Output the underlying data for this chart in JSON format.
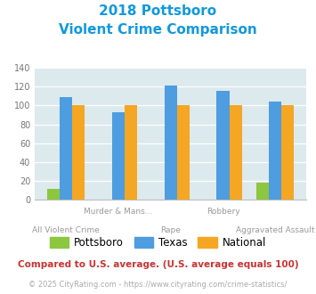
{
  "title_line1": "2018 Pottsboro",
  "title_line2": "Violent Crime Comparison",
  "categories": [
    "All Violent Crime",
    "Murder & Mans...",
    "Rape",
    "Robbery",
    "Aggravated Assault"
  ],
  "series": {
    "Pottsboro": [
      12,
      0,
      0,
      0,
      18
    ],
    "Texas": [
      109,
      93,
      121,
      115,
      104
    ],
    "National": [
      100,
      100,
      100,
      100,
      100
    ]
  },
  "colors": {
    "Pottsboro": "#8dc63f",
    "Texas": "#4d9de0",
    "National": "#f5a623"
  },
  "ylim": [
    0,
    140
  ],
  "yticks": [
    0,
    20,
    40,
    60,
    80,
    100,
    120,
    140
  ],
  "background_color": "#dce9ed",
  "title_color": "#1199dd",
  "xlabel_color": "#999999",
  "footnote1": "Compared to U.S. average. (U.S. average equals 100)",
  "footnote2": "© 2025 CityRating.com - https://www.cityrating.com/crime-statistics/",
  "footnote1_color": "#cc3333",
  "footnote2_color": "#aaaaaa"
}
